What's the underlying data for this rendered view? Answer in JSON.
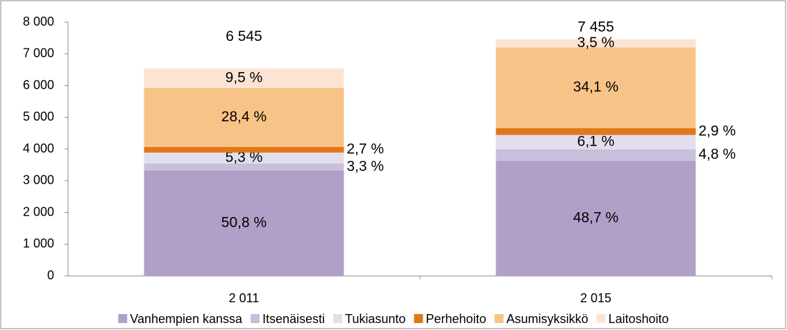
{
  "chart_data": {
    "type": "stacked_bar",
    "categories": [
      "2 011",
      "2 015"
    ],
    "series": [
      {
        "name": "Vanhempien kanssa",
        "color": "#b0a0c8",
        "values": [
          3325,
          3631
        ],
        "value_labels": [
          "50,8 %",
          "48,7 %"
        ]
      },
      {
        "name": "Itsenäisesti",
        "color": "#c9bfdc",
        "values": [
          216,
          358
        ],
        "value_labels": [
          "3,3 %",
          "4,8 %"
        ]
      },
      {
        "name": "Tukiasunto",
        "color": "#e2deee",
        "values": [
          347,
          455
        ],
        "value_labels": [
          "5,3 %",
          "6,1 %"
        ]
      },
      {
        "name": "Perhehoito",
        "color": "#e07818",
        "values": [
          177,
          216
        ],
        "value_labels": [
          "2,7 %",
          "2,9 %"
        ]
      },
      {
        "name": "Asumisyksikkö",
        "color": "#f8c386",
        "values": [
          1859,
          2542
        ],
        "value_labels": [
          "28,4 %",
          "34,1 %"
        ]
      },
      {
        "name": "Laitoshoito",
        "color": "#fce4d4",
        "values": [
          622,
          261
        ],
        "value_labels": [
          "9,5 %",
          "3,5 %"
        ]
      }
    ],
    "totals": {
      "values": [
        6545,
        7455
      ],
      "value_labels": [
        "6 545",
        "7 455"
      ]
    },
    "ylim": [
      0,
      8000
    ],
    "yticks": [
      0,
      {
        "value": 1000,
        "label": "1 000"
      },
      {
        "value": 2000,
        "label": "2 000"
      },
      {
        "value": 3000,
        "label": "3 000"
      },
      {
        "value": 4000,
        "label": "4 000"
      },
      {
        "value": 5000,
        "label": "5 000"
      },
      {
        "value": 6000,
        "label": "6 000"
      },
      {
        "value": 7000,
        "label": "7 000"
      },
      {
        "value": 8000,
        "label": "8 000"
      }
    ],
    "grid": false,
    "legend": "bottom"
  }
}
